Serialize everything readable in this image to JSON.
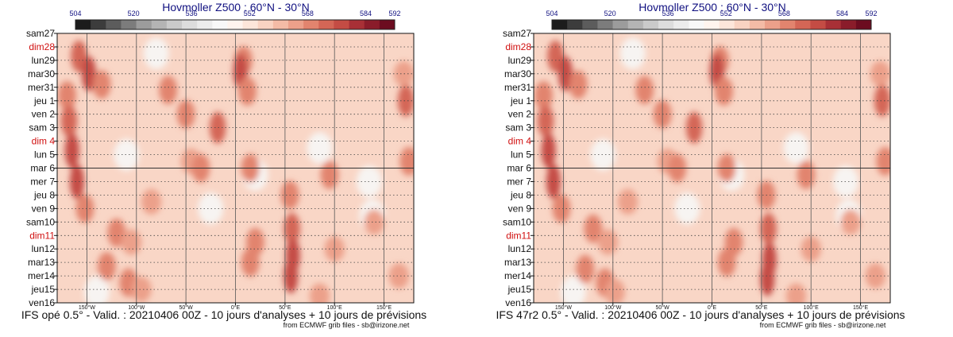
{
  "palette": [
    "#1c1c1c",
    "#3c3c3c",
    "#5c5c5c",
    "#7c7c7c",
    "#9c9c9c",
    "#b4b4b4",
    "#cacaca",
    "#dddddd",
    "#ececec",
    "#f8f8f8",
    "#fff4ee",
    "#fde6da",
    "#f9d3c2",
    "#f4bba6",
    "#eca08a",
    "#e2846e",
    "#d46656",
    "#c44c44",
    "#a83036",
    "#8a1c2a",
    "#6c0c20"
  ],
  "panels": [
    {
      "id": "left",
      "caption": "IFS opé 0.5° - Valid. : 20210406 00Z - 10 jours d'analyses + 10 jours de prévisions",
      "chart_data": {
        "type": "heatmap",
        "title": "Hovmoller Z500 : 60°N - 30°N",
        "color_scale": {
          "ticks": [
            "504",
            "520",
            "536",
            "552",
            "568",
            "584",
            "592"
          ],
          "min": 504,
          "max": 592
        },
        "x_ticks": [
          "150°W",
          "100°W",
          "50°W",
          "0°E",
          "50°E",
          "100°E",
          "150°E"
        ],
        "xlim": [
          "180°W",
          "180°E"
        ],
        "y_labels": [
          "sam27",
          "dim28",
          "lun29",
          "mar30",
          "mer31",
          "jeu 1",
          "ven 2",
          "sam 3",
          "dim 4",
          "lun 5",
          "mar 6",
          "mer 7",
          "jeu 8",
          "ven 9",
          "sam10",
          "dim11",
          "lun12",
          "mar13",
          "mer14",
          "jeu15",
          "ven16"
        ],
        "sunday_labels": [
          "dim28",
          "dim 4",
          "dim11"
        ],
        "analysis_forecast_split": "mar 6",
        "anomalies": [
          {
            "lon": -158,
            "day": 1.7,
            "level": 3
          },
          {
            "lon": -148,
            "day": 3.0,
            "level": 4
          },
          {
            "lon": -135,
            "day": 3.8,
            "level": 2
          },
          {
            "lon": -170,
            "day": 4.6,
            "level": 2
          },
          {
            "lon": -168,
            "day": 6.5,
            "level": 3
          },
          {
            "lon": -165,
            "day": 8.7,
            "level": 4
          },
          {
            "lon": -160,
            "day": 11.0,
            "level": 4
          },
          {
            "lon": -152,
            "day": 13.0,
            "level": 2
          },
          {
            "lon": -120,
            "day": 14.8,
            "level": 2
          },
          {
            "lon": -130,
            "day": 17.3,
            "level": 2
          },
          {
            "lon": -108,
            "day": 18.5,
            "level": 2
          },
          {
            "lon": -95,
            "day": 19.0,
            "level": 1
          },
          {
            "lon": -68,
            "day": 4.2,
            "level": 2
          },
          {
            "lon": -50,
            "day": 6.0,
            "level": 2
          },
          {
            "lon": -45,
            "day": 9.5,
            "level": 1
          },
          {
            "lon": -85,
            "day": 12.5,
            "level": 1
          },
          {
            "lon": -105,
            "day": 15.5,
            "level": 1
          },
          {
            "lon": -18,
            "day": 7.0,
            "level": 3
          },
          {
            "lon": -35,
            "day": 10.0,
            "level": 2
          },
          {
            "lon": 8,
            "day": 2.0,
            "level": 2
          },
          {
            "lon": 5,
            "day": 2.8,
            "level": 4
          },
          {
            "lon": 12,
            "day": 4.3,
            "level": 2
          },
          {
            "lon": 15,
            "day": 10.0,
            "level": 2
          },
          {
            "lon": 15,
            "day": 17.0,
            "level": 2
          },
          {
            "lon": 55,
            "day": 12.0,
            "level": 2
          },
          {
            "lon": 57,
            "day": 14.5,
            "level": 3
          },
          {
            "lon": 58,
            "day": 16.5,
            "level": 4
          },
          {
            "lon": 56,
            "day": 18.0,
            "level": 4
          },
          {
            "lon": 20,
            "day": 15.5,
            "level": 2
          },
          {
            "lon": 95,
            "day": 10.5,
            "level": 2
          },
          {
            "lon": 100,
            "day": 16.0,
            "level": 1
          },
          {
            "lon": 85,
            "day": 19.5,
            "level": 1
          },
          {
            "lon": 170,
            "day": 3.0,
            "level": 1
          },
          {
            "lon": 172,
            "day": 5.0,
            "level": 3
          },
          {
            "lon": 175,
            "day": 9.5,
            "level": 2
          },
          {
            "lon": 165,
            "day": 18.0,
            "level": 1
          },
          {
            "lon": 140,
            "day": 14.0,
            "level": 1
          }
        ],
        "lows": [
          {
            "lon": -80,
            "day": 1.5
          },
          {
            "lon": -110,
            "day": 9.0
          },
          {
            "lon": 20,
            "day": 10.5
          },
          {
            "lon": 135,
            "day": 11.0
          },
          {
            "lon": 138,
            "day": 13.5
          },
          {
            "lon": -25,
            "day": 13.0
          },
          {
            "lon": -140,
            "day": 19.2
          },
          {
            "lon": 85,
            "day": 8.5
          }
        ]
      }
    },
    {
      "id": "right",
      "caption": "IFS 47r2 0.5° - Valid. : 20210406 00Z - 10 jours d'analyses + 10 jours de prévisions",
      "chart_data": {
        "type": "heatmap",
        "title": "Hovmoller Z500 : 60°N - 30°N",
        "color_scale": {
          "ticks": [
            "504",
            "520",
            "536",
            "552",
            "568",
            "584",
            "592"
          ],
          "min": 504,
          "max": 592
        },
        "x_ticks": [
          "150°W",
          "100°W",
          "50°W",
          "0°E",
          "50°E",
          "100°E",
          "150°E"
        ],
        "xlim": [
          "180°W",
          "180°E"
        ],
        "y_labels": [
          "sam27",
          "dim28",
          "lun29",
          "mar30",
          "mer31",
          "jeu 1",
          "ven 2",
          "sam 3",
          "dim 4",
          "lun 5",
          "mar 6",
          "mer 7",
          "jeu 8",
          "ven 9",
          "sam10",
          "dim11",
          "lun12",
          "mar13",
          "mer14",
          "jeu15",
          "ven16"
        ],
        "sunday_labels": [
          "dim28",
          "dim 4",
          "dim11"
        ],
        "analysis_forecast_split": "mar 6",
        "anomalies": [
          {
            "lon": -158,
            "day": 1.7,
            "level": 3
          },
          {
            "lon": -148,
            "day": 3.0,
            "level": 4
          },
          {
            "lon": -135,
            "day": 3.8,
            "level": 2
          },
          {
            "lon": -170,
            "day": 4.6,
            "level": 2
          },
          {
            "lon": -168,
            "day": 6.5,
            "level": 3
          },
          {
            "lon": -165,
            "day": 8.7,
            "level": 4
          },
          {
            "lon": -160,
            "day": 11.0,
            "level": 4
          },
          {
            "lon": -152,
            "day": 13.0,
            "level": 2
          },
          {
            "lon": -120,
            "day": 14.5,
            "level": 2
          },
          {
            "lon": -128,
            "day": 17.5,
            "level": 2
          },
          {
            "lon": -108,
            "day": 18.5,
            "level": 2
          },
          {
            "lon": -98,
            "day": 19.2,
            "level": 1
          },
          {
            "lon": -68,
            "day": 4.2,
            "level": 2
          },
          {
            "lon": -50,
            "day": 6.0,
            "level": 2
          },
          {
            "lon": -45,
            "day": 9.5,
            "level": 1
          },
          {
            "lon": -85,
            "day": 12.5,
            "level": 1
          },
          {
            "lon": -105,
            "day": 15.5,
            "level": 1
          },
          {
            "lon": -18,
            "day": 7.0,
            "level": 3
          },
          {
            "lon": -35,
            "day": 10.0,
            "level": 2
          },
          {
            "lon": 8,
            "day": 2.0,
            "level": 2
          },
          {
            "lon": 5,
            "day": 2.8,
            "level": 4
          },
          {
            "lon": 12,
            "day": 4.3,
            "level": 2
          },
          {
            "lon": 15,
            "day": 10.0,
            "level": 2
          },
          {
            "lon": 15,
            "day": 17.0,
            "level": 2
          },
          {
            "lon": 55,
            "day": 12.0,
            "level": 2
          },
          {
            "lon": 57,
            "day": 14.5,
            "level": 3
          },
          {
            "lon": 58,
            "day": 16.8,
            "level": 4
          },
          {
            "lon": 56,
            "day": 18.2,
            "level": 4
          },
          {
            "lon": 22,
            "day": 15.5,
            "level": 2
          },
          {
            "lon": 95,
            "day": 10.5,
            "level": 2
          },
          {
            "lon": 100,
            "day": 16.0,
            "level": 1
          },
          {
            "lon": 85,
            "day": 19.5,
            "level": 1
          },
          {
            "lon": 170,
            "day": 3.0,
            "level": 1
          },
          {
            "lon": 172,
            "day": 5.0,
            "level": 3
          },
          {
            "lon": 175,
            "day": 9.5,
            "level": 2
          },
          {
            "lon": 165,
            "day": 18.0,
            "level": 1
          },
          {
            "lon": 140,
            "day": 14.0,
            "level": 1
          }
        ],
        "lows": [
          {
            "lon": -80,
            "day": 1.5
          },
          {
            "lon": -110,
            "day": 9.0
          },
          {
            "lon": 20,
            "day": 10.5
          },
          {
            "lon": 135,
            "day": 11.0
          },
          {
            "lon": 138,
            "day": 13.5
          },
          {
            "lon": -25,
            "day": 13.0
          },
          {
            "lon": -140,
            "day": 19.2
          },
          {
            "lon": 85,
            "day": 8.5
          }
        ]
      }
    }
  ],
  "credit": "from ECMWF grib files - sb@irizone.net"
}
